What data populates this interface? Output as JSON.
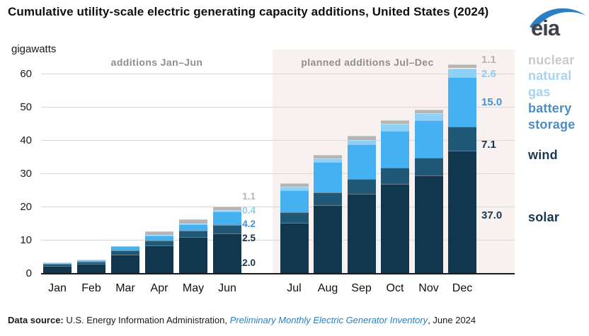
{
  "header": {
    "title": "Cumulative utility-scale electric generating capacity additions, United States (2024)",
    "unit": "gigawatts",
    "logo_text": "eia",
    "logo_swoosh_color": "#2b7fc3"
  },
  "chart_data": {
    "type": "bar",
    "stacked": true,
    "title": "Cumulative utility-scale electric generating capacity additions, United States (2024)",
    "xlabel": "",
    "ylabel": "gigawatts",
    "ylim": [
      0,
      67
    ],
    "yticks": [
      0,
      10,
      20,
      30,
      40,
      50,
      60
    ],
    "grid": true,
    "categories": [
      "Jan",
      "Feb",
      "Mar",
      "Apr",
      "May",
      "Jun",
      "Jul",
      "Aug",
      "Sep",
      "Oct",
      "Nov",
      "Dec"
    ],
    "section_labels": {
      "first": "additions Jan–Jun",
      "second": "planned additions Jul–Dec"
    },
    "series": [
      {
        "name": "solar",
        "color": "#11374f",
        "values": [
          2.3,
          2.9,
          5.6,
          8.3,
          10.9,
          12.0,
          15.2,
          20.6,
          24.0,
          26.9,
          29.4,
          37.0
        ]
      },
      {
        "name": "wind",
        "color": "#205878",
        "values": [
          0.5,
          0.6,
          1.4,
          1.6,
          1.9,
          2.5,
          3.2,
          3.7,
          4.3,
          5.0,
          5.3,
          7.1
        ]
      },
      {
        "name": "battery storage",
        "color": "#45b1f1",
        "values": [
          0.3,
          0.5,
          1.1,
          1.4,
          2.0,
          4.2,
          6.7,
          9.2,
          10.6,
          11.0,
          11.3,
          15.0
        ]
      },
      {
        "name": "natural gas",
        "color": "#8dd2f6",
        "values": [
          0.1,
          0.1,
          0.1,
          0.2,
          0.3,
          0.4,
          0.9,
          1.0,
          1.3,
          2.0,
          2.1,
          2.6
        ]
      },
      {
        "name": "nuclear",
        "color": "#b5b5b5",
        "values": [
          0.0,
          0.0,
          0.0,
          1.1,
          1.1,
          1.1,
          1.1,
          1.1,
          1.1,
          1.1,
          1.1,
          1.1
        ]
      }
    ],
    "end_labels": {
      "order": [
        "nuclear",
        "natural gas",
        "battery storage",
        "wind",
        "solar"
      ],
      "colors": [
        "#b2b5b8",
        "#8ccdf2",
        "#4492d0",
        "#1a3048",
        "#17384f"
      ],
      "june_values": [
        "1.1",
        "0.4",
        "4.2",
        "2.5",
        "12.0"
      ],
      "december_values": [
        "1.1",
        "2.6",
        "15.0",
        "7.1",
        "37.0"
      ]
    },
    "legend": {
      "position": "right",
      "items": [
        {
          "label": "nuclear",
          "color": "#c7cacd"
        },
        {
          "label": "natural gas",
          "color": "#a5d5f2"
        },
        {
          "label": "battery storage",
          "color": "#4b8ec6"
        },
        {
          "label": "wind",
          "color": "#1b3a52"
        },
        {
          "label": "solar",
          "color": "#16364e"
        }
      ]
    }
  },
  "footer": {
    "label": "Data source:",
    "agency": " U.S. Energy Information Administration, ",
    "link": "Preliminary Monthly Electric Generator Inventory",
    "date": ", June 2024"
  }
}
